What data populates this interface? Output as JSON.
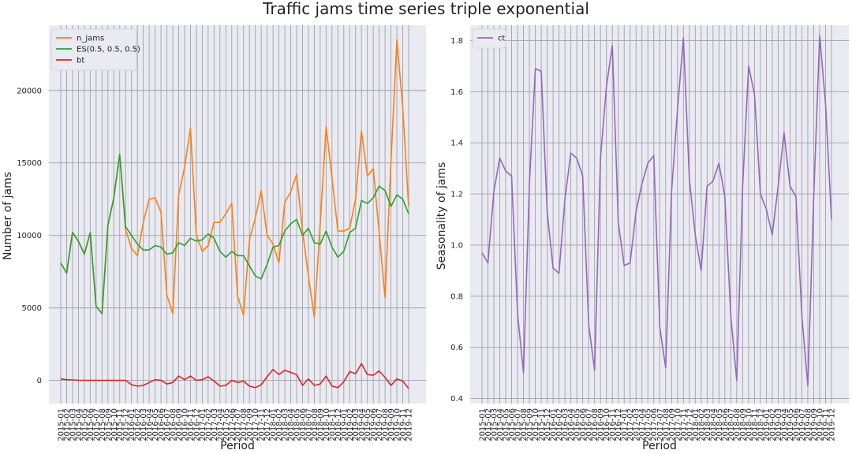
{
  "figure": {
    "title": "Traffic jams time series triple exponential"
  },
  "chart_data": [
    {
      "type": "line",
      "xlabel": "Period",
      "ylabel": "Number of jams",
      "ylim": [
        -1600,
        24500
      ],
      "yticks": [
        0,
        5000,
        10000,
        15000,
        20000
      ],
      "grid": true,
      "legend_position": "top-left",
      "x": [
        "2015-01",
        "2015-02",
        "2015-03",
        "2015-04",
        "2015-05",
        "2015-06",
        "2015-07",
        "2015-08",
        "2015-09",
        "2015-10",
        "2015-11",
        "2015-12",
        "2016-01",
        "2016-02",
        "2016-03",
        "2016-04",
        "2016-05",
        "2016-06",
        "2016-07",
        "2016-08",
        "2016-09",
        "2016-10",
        "2016-11",
        "2016-12",
        "2017-01",
        "2017-02",
        "2017-03",
        "2017-04",
        "2017-05",
        "2017-06",
        "2017-07",
        "2017-08",
        "2017-09",
        "2017-10",
        "2017-11",
        "2017-12",
        "2018-01",
        "2018-02",
        "2018-03",
        "2018-04",
        "2018-05",
        "2018-06",
        "2018-07",
        "2018-08",
        "2018-09",
        "2018-10",
        "2018-11",
        "2018-12",
        "2019-01",
        "2019-02",
        "2019-03",
        "2019-04",
        "2019-05",
        "2019-06",
        "2019-07",
        "2019-08",
        "2019-09",
        "2019-10",
        "2019-11",
        "2019-12"
      ],
      "series": [
        {
          "name": "n_jams",
          "color": "#ff7f0e",
          "values": [
            8100,
            7400,
            10200,
            9600,
            8700,
            10200,
            5100,
            4600,
            10700,
            12600,
            15600,
            10400,
            9100,
            8600,
            10900,
            12500,
            12600,
            11600,
            5900,
            4600,
            12800,
            14700,
            17400,
            10000,
            8900,
            9300,
            10900,
            10900,
            11500,
            12200,
            5800,
            4500,
            9700,
            11200,
            13100,
            10000,
            9400,
            8100,
            12300,
            13000,
            14200,
            10300,
            7200,
            4400,
            10800,
            17500,
            14000,
            10300,
            10300,
            10500,
            12500,
            17200,
            14100,
            14600,
            10200,
            5700,
            15100,
            23500,
            18800,
            12000
          ]
        },
        {
          "name": "ES(0.5, 0.5, 0.5)",
          "color": "#2ca02c",
          "values": [
            8100,
            7400,
            10200,
            9600,
            8700,
            10200,
            5100,
            4600,
            10700,
            12600,
            15600,
            10600,
            10000,
            9400,
            9000,
            9000,
            9300,
            9200,
            8700,
            8800,
            9500,
            9300,
            9800,
            9600,
            9700,
            10100,
            9800,
            8900,
            8500,
            8900,
            8600,
            8600,
            7900,
            7200,
            7000,
            8000,
            9200,
            9300,
            10300,
            10800,
            11100,
            10000,
            10500,
            9500,
            9400,
            10300,
            9200,
            8500,
            8900,
            10200,
            10500,
            12400,
            12200,
            12600,
            13400,
            13100,
            12000,
            12800,
            12500,
            11500
          ]
        },
        {
          "name": "bt",
          "color": "#d62728",
          "values": [
            100,
            50,
            30,
            10,
            5,
            0,
            0,
            0,
            0,
            0,
            0,
            0,
            -300,
            -400,
            -350,
            -150,
            50,
            0,
            -250,
            -150,
            300,
            50,
            300,
            0,
            50,
            250,
            -50,
            -400,
            -350,
            0,
            -150,
            -50,
            -400,
            -500,
            -300,
            250,
            750,
            400,
            700,
            550,
            400,
            -350,
            100,
            -350,
            -250,
            300,
            -400,
            -500,
            -100,
            600,
            450,
            1150,
            400,
            350,
            650,
            200,
            -350,
            100,
            -50,
            -550
          ]
        }
      ],
      "xtick_labels": [
        "2015-01",
        "2015-02",
        "2015-03",
        "2015-04",
        "2015-05",
        "2015-06",
        "2015-07",
        "2015-08",
        "2015-09",
        "2015-10",
        "2015-11",
        "2015-12",
        "2016-01",
        "2016-02",
        "2016-03",
        "2016-04",
        "2016-05",
        "2016-06",
        "2016-07",
        "2016-08",
        "2016-09",
        "2016-10",
        "2016-11",
        "2016-12",
        "2017-01",
        "2017-02",
        "2017-03",
        "2017-04",
        "2017-05",
        "2017-06",
        "2017-07",
        "2017-08",
        "2017-09",
        "2017-10",
        "2017-11",
        "2017-12",
        "2018-01",
        "2018-02",
        "2018-03",
        "2018-04",
        "2018-05",
        "2018-06",
        "2018-07",
        "2018-08",
        "2018-09",
        "2018-10",
        "2018-11",
        "2018-12",
        "2019-01",
        "2019-02",
        "2019-03",
        "2019-04",
        "2019-05",
        "2019-06",
        "2019-07",
        "2019-08",
        "2019-09",
        "2019-10",
        "2019-11",
        "2019-12"
      ]
    },
    {
      "type": "line",
      "xlabel": "Period",
      "ylabel": "Seasonality of jams",
      "ylim": [
        0.38,
        1.86
      ],
      "yticks": [
        0.4,
        0.6,
        0.8,
        1.0,
        1.2,
        1.4,
        1.6,
        1.8
      ],
      "grid": true,
      "legend_position": "top-left",
      "x": [
        "2015-01",
        "2015-02",
        "2015-03",
        "2015-04",
        "2015-05",
        "2015-06",
        "2015-07",
        "2015-08",
        "2015-09",
        "2015-10",
        "2015-11",
        "2015-12",
        "2016-01",
        "2016-02",
        "2016-03",
        "2016-04",
        "2016-05",
        "2016-06",
        "2016-07",
        "2016-08",
        "2016-09",
        "2016-10",
        "2016-11",
        "2016-12",
        "2017-01",
        "2017-02",
        "2017-03",
        "2017-04",
        "2017-05",
        "2017-06",
        "2017-07",
        "2017-08",
        "2017-09",
        "2017-10",
        "2017-11",
        "2017-12",
        "2018-01",
        "2018-02",
        "2018-03",
        "2018-04",
        "2018-05",
        "2018-06",
        "2018-07",
        "2018-08",
        "2018-09",
        "2018-10",
        "2018-11",
        "2018-12",
        "2019-01",
        "2019-02",
        "2019-03",
        "2019-04",
        "2019-05",
        "2019-06",
        "2019-07",
        "2019-08",
        "2019-09",
        "2019-10",
        "2019-11",
        "2019-12"
      ],
      "series": [
        {
          "name": "ct",
          "color": "#9467bd",
          "values": [
            0.97,
            0.93,
            1.21,
            1.34,
            1.29,
            1.27,
            0.73,
            0.5,
            1.24,
            1.69,
            1.68,
            1.13,
            0.91,
            0.89,
            1.18,
            1.36,
            1.34,
            1.27,
            0.69,
            0.51,
            1.34,
            1.62,
            1.78,
            1.09,
            0.92,
            0.93,
            1.13,
            1.24,
            1.32,
            1.35,
            0.68,
            0.52,
            1.21,
            1.53,
            1.81,
            1.26,
            1.04,
            0.9,
            1.23,
            1.25,
            1.32,
            1.19,
            0.72,
            0.47,
            1.23,
            1.7,
            1.59,
            1.2,
            1.14,
            1.04,
            1.23,
            1.44,
            1.23,
            1.19,
            0.72,
            0.45,
            1.19,
            1.82,
            1.55,
            1.1
          ]
        }
      ],
      "xtick_labels": [
        "2015-01",
        "2015-02",
        "2015-03",
        "2015-04",
        "2015-05",
        "2015-06",
        "2015-07",
        "2015-08",
        "2015-09",
        "2015-10",
        "2015-11",
        "2015-12",
        "2016-01",
        "2016-02",
        "2016-03",
        "2016-04",
        "2016-05",
        "2016-06",
        "2016-07",
        "2016-08",
        "2016-09",
        "2016-10",
        "2016-11",
        "2016-12",
        "2017-01",
        "2017-02",
        "2017-03",
        "2017-04",
        "2017-05",
        "2017-06",
        "2017-07",
        "2017-08",
        "2017-09",
        "2017-10",
        "2017-11",
        "2017-12",
        "2018-01",
        "2018-02",
        "2018-03",
        "2018-04",
        "2018-05",
        "2018-06",
        "2018-07",
        "2018-08",
        "2018-09",
        "2018-10",
        "2018-11",
        "2018-12",
        "2019-01",
        "2019-02",
        "2019-03",
        "2019-04",
        "2019-05",
        "2019-06",
        "2019-07",
        "2019-08",
        "2019-09",
        "2019-10",
        "2019-11",
        "2019-12"
      ]
    }
  ],
  "style": {
    "axes_background": "#eaeaf2",
    "grid_color": "#a0a0a8"
  }
}
